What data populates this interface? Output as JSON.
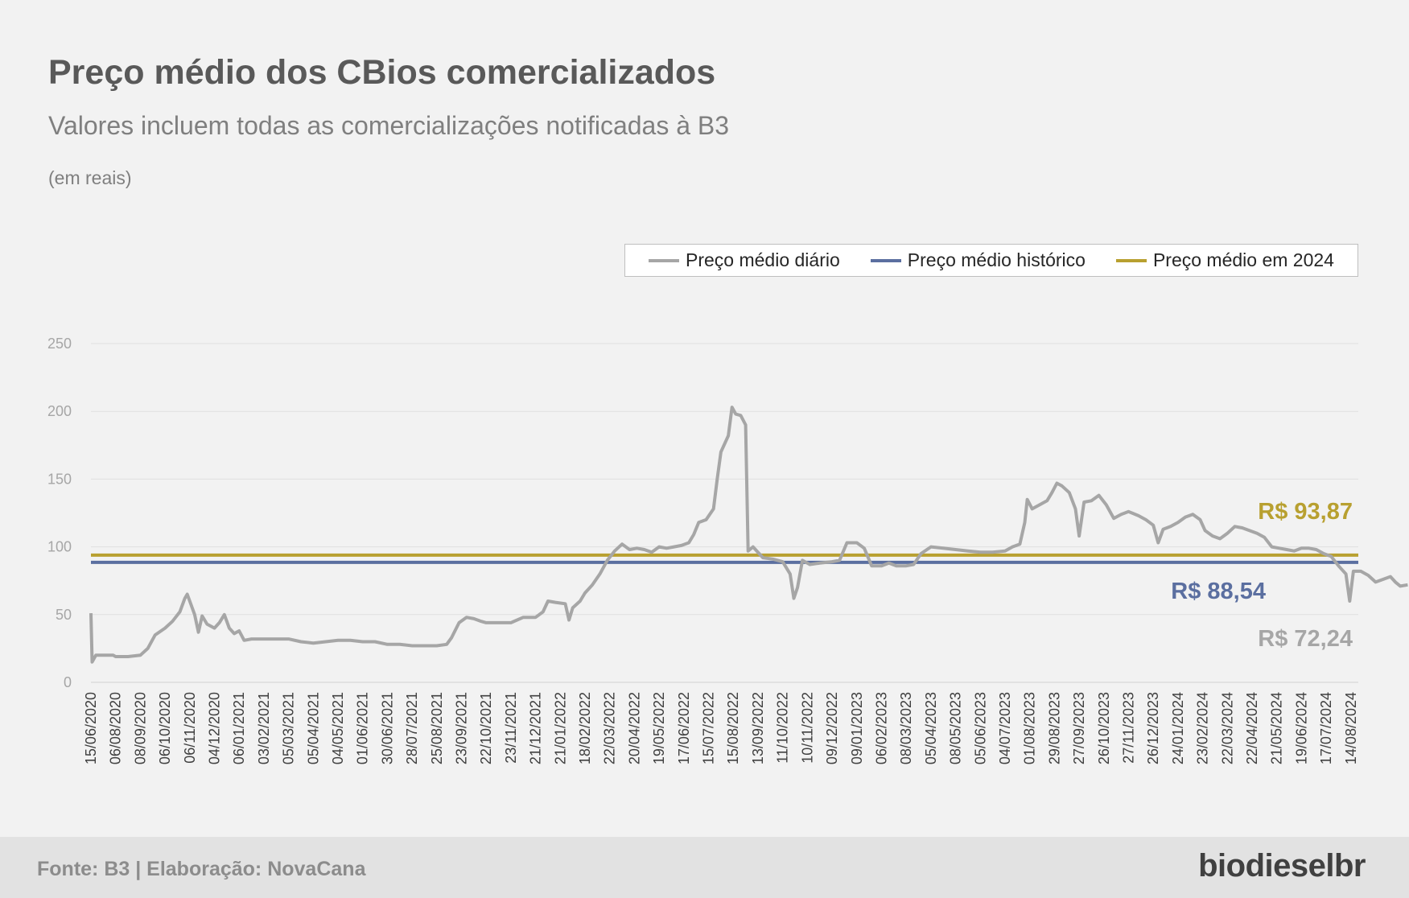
{
  "header": {
    "title": "Preço médio dos CBios comercializados",
    "subtitle": "Valores incluem todas as comercializações notificadas à B3",
    "unit": "(em reais)"
  },
  "legend": {
    "items": [
      {
        "label": "Preço médio diário",
        "color": "#a6a6a6"
      },
      {
        "label": "Preço médio histórico",
        "color": "#5b6fa0"
      },
      {
        "label": "Preço médio em 2024",
        "color": "#b8a030"
      }
    ]
  },
  "footer": {
    "source": "Fonte: B3 | Elaboração: NovaCana",
    "logo": "biodieselbr"
  },
  "chart_data": {
    "type": "line",
    "title": "Preço médio dos CBios comercializados",
    "ylim": [
      0,
      250
    ],
    "yticks": [
      0,
      50,
      100,
      150,
      200,
      250
    ],
    "grid": true,
    "legend_position": "top-right",
    "x_tick_labels": [
      "15/06/2020",
      "06/08/2020",
      "08/09/2020",
      "06/10/2020",
      "06/11/2020",
      "04/12/2020",
      "06/01/2021",
      "03/02/2021",
      "05/03/2021",
      "05/04/2021",
      "04/05/2021",
      "01/06/2021",
      "30/06/2021",
      "28/07/2021",
      "25/08/2021",
      "23/09/2021",
      "22/10/2021",
      "23/11/2021",
      "21/12/2021",
      "21/01/2022",
      "18/02/2022",
      "22/03/2022",
      "20/04/2022",
      "19/05/2022",
      "17/06/2022",
      "15/07/2022",
      "15/08/2022",
      "13/09/2022",
      "11/10/2022",
      "10/11/2022",
      "09/12/2022",
      "09/01/2023",
      "06/02/2023",
      "08/03/2023",
      "05/04/2023",
      "08/05/2023",
      "05/06/2023",
      "04/07/2023",
      "01/08/2023",
      "29/08/2023",
      "27/09/2023",
      "26/10/2023",
      "27/11/2023",
      "26/12/2023",
      "24/01/2024",
      "23/02/2024",
      "22/03/2024",
      "22/04/2024",
      "21/05/2024",
      "19/06/2024",
      "17/07/2024",
      "14/08/2024"
    ],
    "series": [
      {
        "name": "Preço médio diário",
        "color": "#a6a6a6",
        "values": [
          [
            0,
            51
          ],
          [
            0.05,
            15
          ],
          [
            0.2,
            20
          ],
          [
            0.6,
            20
          ],
          [
            0.9,
            20
          ],
          [
            1,
            19
          ],
          [
            1.5,
            19
          ],
          [
            2,
            20
          ],
          [
            2.3,
            25
          ],
          [
            2.6,
            35
          ],
          [
            3,
            40
          ],
          [
            3.3,
            45
          ],
          [
            3.6,
            52
          ],
          [
            3.8,
            62
          ],
          [
            3.9,
            65
          ],
          [
            4,
            60
          ],
          [
            4.2,
            50
          ],
          [
            4.35,
            37
          ],
          [
            4.5,
            49
          ],
          [
            4.7,
            43
          ],
          [
            5,
            40
          ],
          [
            5.2,
            44
          ],
          [
            5.4,
            50
          ],
          [
            5.6,
            40
          ],
          [
            5.8,
            36
          ],
          [
            6,
            38
          ],
          [
            6.2,
            31
          ],
          [
            6.5,
            32
          ],
          [
            7,
            32
          ],
          [
            7.5,
            32
          ],
          [
            8,
            32
          ],
          [
            8.5,
            30
          ],
          [
            9,
            29
          ],
          [
            9.5,
            30
          ],
          [
            10,
            31
          ],
          [
            10.5,
            31
          ],
          [
            11,
            30
          ],
          [
            11.5,
            30
          ],
          [
            12,
            28
          ],
          [
            12.5,
            28
          ],
          [
            13,
            27
          ],
          [
            13.5,
            27
          ],
          [
            14,
            27
          ],
          [
            14.4,
            28
          ],
          [
            14.6,
            33
          ],
          [
            14.9,
            44
          ],
          [
            15.2,
            48
          ],
          [
            15.5,
            47
          ],
          [
            15.8,
            45
          ],
          [
            16,
            44
          ],
          [
            16.5,
            44
          ],
          [
            17,
            44
          ],
          [
            17.5,
            48
          ],
          [
            18,
            48
          ],
          [
            18.3,
            52
          ],
          [
            18.5,
            60
          ],
          [
            18.8,
            59
          ],
          [
            19.2,
            58
          ],
          [
            19.35,
            46
          ],
          [
            19.5,
            55
          ],
          [
            19.8,
            60
          ],
          [
            20,
            66
          ],
          [
            20.3,
            72
          ],
          [
            20.6,
            80
          ],
          [
            20.9,
            90
          ],
          [
            21.2,
            97
          ],
          [
            21.5,
            102
          ],
          [
            21.8,
            98
          ],
          [
            22.1,
            99
          ],
          [
            22.4,
            98
          ],
          [
            22.7,
            96
          ],
          [
            23,
            100
          ],
          [
            23.3,
            99
          ],
          [
            23.6,
            100
          ],
          [
            23.9,
            101
          ],
          [
            24.2,
            103
          ],
          [
            24.4,
            109
          ],
          [
            24.6,
            118
          ],
          [
            24.9,
            120
          ],
          [
            25.2,
            128
          ],
          [
            25.35,
            150
          ],
          [
            25.5,
            170
          ],
          [
            25.8,
            182
          ],
          [
            25.95,
            203
          ],
          [
            26.1,
            198
          ],
          [
            26.3,
            197
          ],
          [
            26.5,
            190
          ],
          [
            26.6,
            97
          ],
          [
            26.8,
            100
          ],
          [
            27.2,
            92
          ],
          [
            27.6,
            91
          ],
          [
            28,
            89
          ],
          [
            28.3,
            80
          ],
          [
            28.45,
            62
          ],
          [
            28.6,
            70
          ],
          [
            28.8,
            90
          ],
          [
            29.1,
            87
          ],
          [
            29.5,
            88
          ],
          [
            30,
            89
          ],
          [
            30.3,
            90
          ],
          [
            30.6,
            103
          ],
          [
            31,
            103
          ],
          [
            31.3,
            99
          ],
          [
            31.6,
            86
          ],
          [
            32,
            86
          ],
          [
            32.3,
            88
          ],
          [
            32.6,
            86
          ],
          [
            33,
            86
          ],
          [
            33.3,
            87
          ],
          [
            33.6,
            95
          ],
          [
            34,
            100
          ],
          [
            34.5,
            99
          ],
          [
            35,
            98
          ],
          [
            35.5,
            97
          ],
          [
            36,
            96
          ],
          [
            36.5,
            96
          ],
          [
            37,
            97
          ],
          [
            37.3,
            100
          ],
          [
            37.6,
            102
          ],
          [
            37.8,
            118
          ],
          [
            37.9,
            135
          ],
          [
            38.1,
            128
          ],
          [
            38.4,
            131
          ],
          [
            38.7,
            134
          ],
          [
            38.9,
            140
          ],
          [
            39.1,
            147
          ],
          [
            39.3,
            145
          ],
          [
            39.6,
            140
          ],
          [
            39.85,
            128
          ],
          [
            40,
            108
          ],
          [
            40.2,
            133
          ],
          [
            40.5,
            134
          ],
          [
            40.8,
            138
          ],
          [
            41.1,
            131
          ],
          [
            41.4,
            121
          ],
          [
            41.7,
            124
          ],
          [
            42,
            126
          ],
          [
            42.4,
            123
          ],
          [
            42.7,
            120
          ],
          [
            43,
            116
          ],
          [
            43.2,
            103
          ],
          [
            43.4,
            113
          ],
          [
            43.7,
            115
          ],
          [
            44,
            118
          ],
          [
            44.3,
            122
          ],
          [
            44.6,
            124
          ],
          [
            44.9,
            120
          ],
          [
            45.1,
            112
          ],
          [
            45.4,
            108
          ],
          [
            45.7,
            106
          ],
          [
            46,
            110
          ],
          [
            46.3,
            115
          ],
          [
            46.6,
            114
          ],
          [
            46.9,
            112
          ],
          [
            47.2,
            110
          ],
          [
            47.5,
            107
          ],
          [
            47.8,
            100
          ],
          [
            48.1,
            99
          ],
          [
            48.4,
            98
          ],
          [
            48.7,
            97
          ],
          [
            49,
            99
          ],
          [
            49.3,
            99
          ],
          [
            49.6,
            98
          ],
          [
            49.9,
            95
          ],
          [
            50.2,
            93
          ],
          [
            50.5,
            86
          ],
          [
            50.8,
            80
          ],
          [
            50.95,
            60
          ],
          [
            51.1,
            82
          ],
          [
            51.4,
            82
          ],
          [
            51.7,
            79
          ],
          [
            52,
            74
          ],
          [
            52.3,
            76
          ],
          [
            52.6,
            78
          ],
          [
            52.8,
            74
          ],
          [
            53,
            71
          ],
          [
            53.3,
            72
          ]
        ]
      },
      {
        "name": "Preço médio histórico",
        "color": "#5b6fa0",
        "constant": 88.54
      },
      {
        "name": "Preço médio em 2024",
        "color": "#b8a030",
        "constant": 93.87
      }
    ],
    "annotations": [
      {
        "text": "R$ 93,87",
        "value": 93.87,
        "color": "#b8a030"
      },
      {
        "text": "R$ 88,54",
        "value": 88.54,
        "color": "#5b6fa0"
      },
      {
        "text": "R$ 72,24",
        "value": 72.24,
        "color": "#a6a6a6"
      }
    ]
  }
}
